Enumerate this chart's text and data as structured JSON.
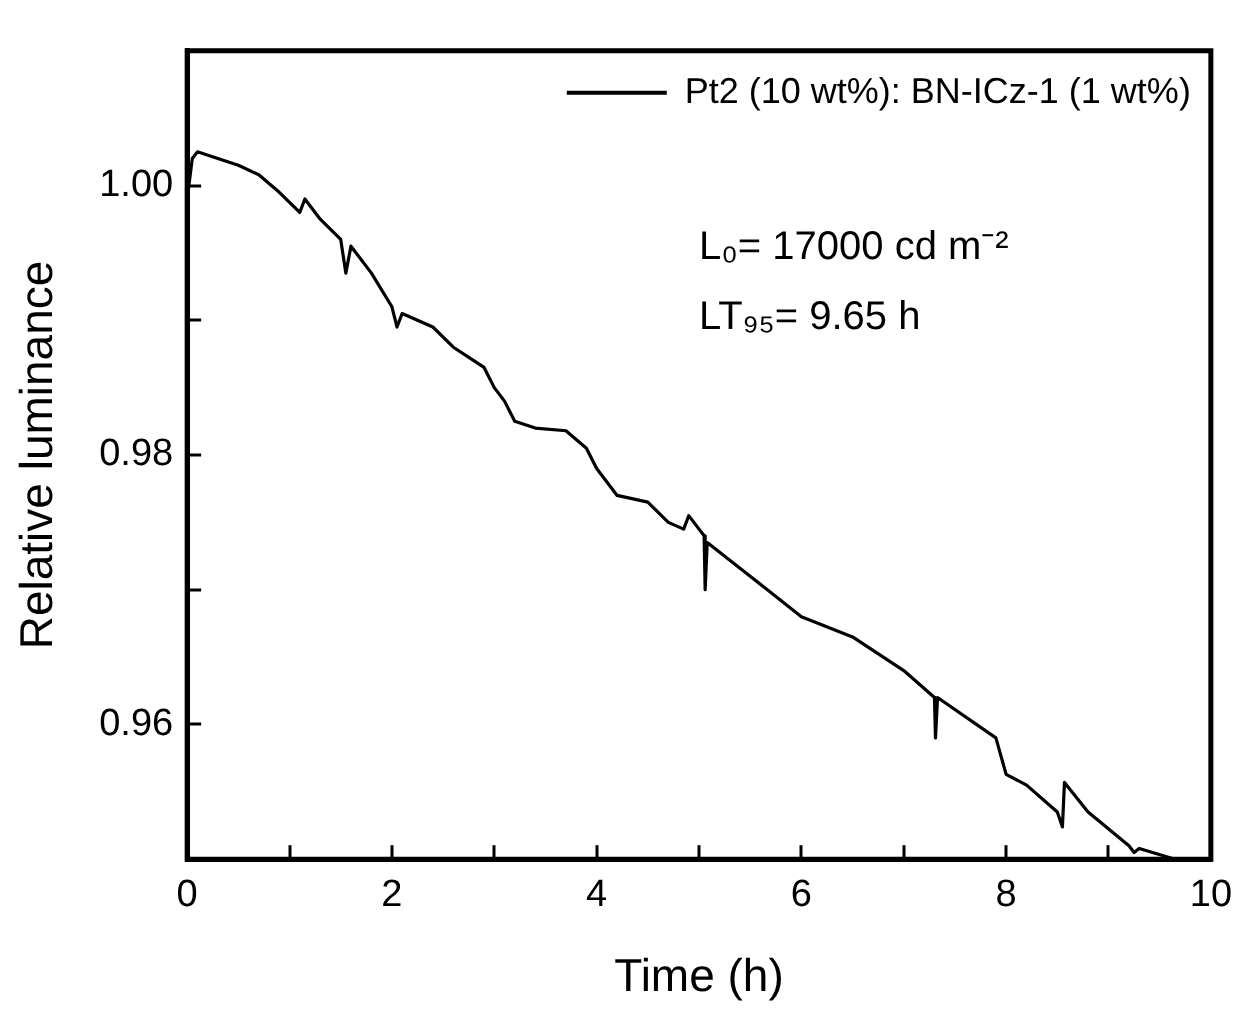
{
  "chart_data": {
    "type": "line",
    "xlabel": "Time (h)",
    "ylabel": "Relative luminance",
    "xlim": [
      0,
      10
    ],
    "xticks": [
      0,
      {
        "value": 1,
        "label": null
      },
      2,
      {
        "value": 3,
        "label": null
      },
      4,
      {
        "value": 5,
        "label": null
      },
      6,
      {
        "value": 7,
        "label": null
      },
      8,
      {
        "value": 9,
        "label": null
      },
      10
    ],
    "ylim": [
      0.95,
      1.01
    ],
    "yticks": [
      {
        "value": 0.95,
        "label": null
      },
      0.96,
      {
        "value": 0.97,
        "label": null
      },
      0.98,
      {
        "value": 0.99,
        "label": null
      },
      "1.00"
    ],
    "legend": "top right",
    "marker": "none",
    "line_style": "solid",
    "grid": false,
    "annotations": [
      "L₀= 17000 cd m⁻²",
      "LT₉₅= 9.65 h"
    ],
    "series": [
      {
        "name": "Pt2 (10 wt%): BN-ICz-1 (1 wt%)",
        "color": "#000000",
        "x": [
          0,
          0.05,
          0.1,
          0.3,
          0.5,
          0.7,
          0.9,
          1.1,
          1.15,
          1.3,
          1.5,
          1.55,
          1.6,
          1.8,
          2.0,
          2.05,
          2.1,
          2.4,
          2.6,
          2.8,
          2.9,
          3.0,
          3.1,
          3.2,
          3.4,
          3.7,
          3.9,
          4.0,
          4.1,
          4.2,
          4.5,
          4.7,
          4.85,
          4.9,
          5.0,
          5.05,
          5.06,
          5.08,
          5.5,
          6.0,
          6.5,
          7.0,
          7.3,
          7.31,
          7.33,
          7.9,
          8.0,
          8.2,
          8.5,
          8.55,
          8.57,
          8.8,
          9.2,
          9.25,
          9.3,
          9.65
        ],
        "values": [
          0.999,
          1.002,
          1.0025,
          1.002,
          1.0015,
          1.0008,
          0.9995,
          0.998,
          0.999,
          0.9975,
          0.996,
          0.9935,
          0.9955,
          0.9935,
          0.991,
          0.9895,
          0.9905,
          0.9895,
          0.988,
          0.987,
          0.9865,
          0.985,
          0.984,
          0.9825,
          0.982,
          0.9818,
          0.9805,
          0.979,
          0.978,
          0.977,
          0.9765,
          0.975,
          0.9745,
          0.9755,
          0.9745,
          0.974,
          0.97,
          0.9735,
          0.971,
          0.968,
          0.9665,
          0.964,
          0.962,
          0.959,
          0.962,
          0.959,
          0.9563,
          0.9555,
          0.9535,
          0.9524,
          0.9557,
          0.9535,
          0.951,
          0.9505,
          0.9508,
          0.95
        ]
      }
    ]
  }
}
